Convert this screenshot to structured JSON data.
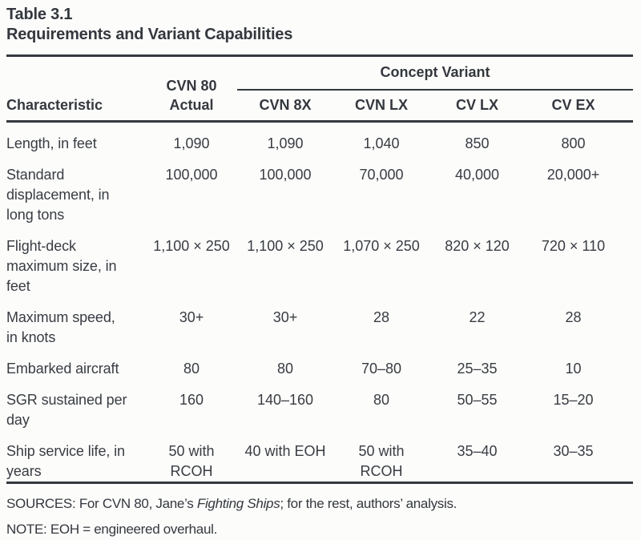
{
  "title": {
    "label": "Table 3.1",
    "caption": "Requirements and Variant Capabilities"
  },
  "table": {
    "characteristic_header": "Characteristic",
    "actual_header": "CVN 80\nActual",
    "spanner": "Concept Variant",
    "variant_headers": [
      "CVN 8X",
      "CVN LX",
      "CV LX",
      "CV EX"
    ],
    "rows": [
      {
        "label": "Length, in feet",
        "values": [
          "1,090",
          "1,090",
          "1,040",
          "850",
          "800"
        ]
      },
      {
        "label": "Standard\ndisplacement, in\nlong tons",
        "values": [
          "100,000",
          "100,000",
          "70,000",
          "40,000",
          "20,000+"
        ]
      },
      {
        "label": "Flight-deck\nmaximum size, in\nfeet",
        "values": [
          "1,100 × 250",
          "1,100 × 250",
          "1,070 × 250",
          "820 × 120",
          "720 × 110"
        ]
      },
      {
        "label": "Maximum speed,\nin knots",
        "values": [
          "30+",
          "30+",
          "28",
          "22",
          "28"
        ]
      },
      {
        "label": "Embarked aircraft",
        "values": [
          "80",
          "80",
          "70–80",
          "25–35",
          "10"
        ]
      },
      {
        "label": "SGR sustained per\nday",
        "values": [
          "160",
          "140–160",
          "80",
          "50–55",
          "15–20"
        ]
      },
      {
        "label": "Ship service life, in\nyears",
        "values": [
          "50 with\nRCOH",
          "40 with EOH",
          "50 with\nRCOH",
          "35–40",
          "30–35"
        ]
      }
    ]
  },
  "footnotes": {
    "sources_prefix": "SOURCES: For CVN 80, Jane’s ",
    "sources_italic": "Fighting Ships",
    "sources_suffix": "; for the rest, authors’ analysis.",
    "note": "NOTE: EOH = engineered overhaul."
  }
}
